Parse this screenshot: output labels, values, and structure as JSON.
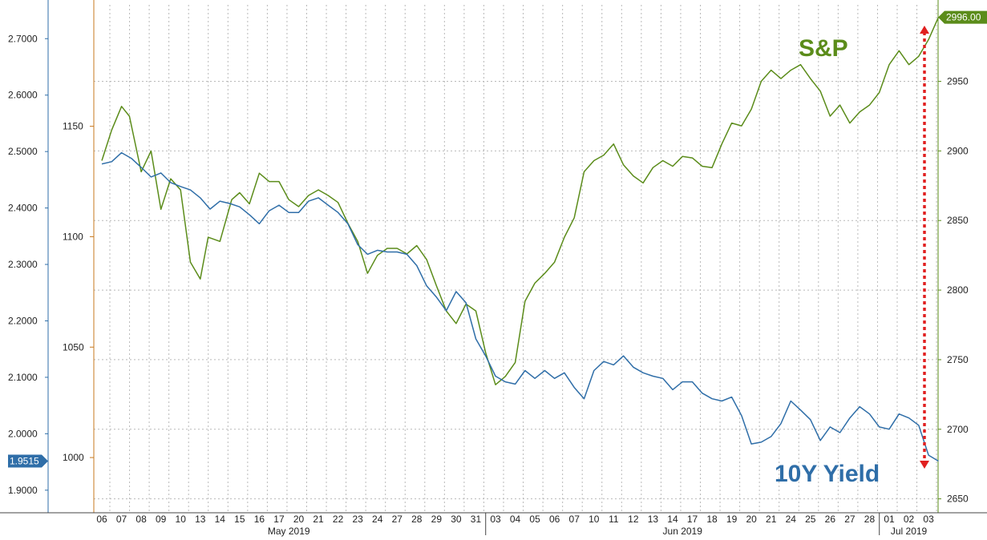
{
  "chart_data": {
    "type": "line",
    "title": "",
    "x_axis": {
      "day_ticks": [
        "06",
        "07",
        "08",
        "09",
        "10",
        "13",
        "14",
        "15",
        "16",
        "17",
        "20",
        "21",
        "22",
        "23",
        "24",
        "27",
        "28",
        "29",
        "30",
        "31",
        "03",
        "04",
        "05",
        "06",
        "07",
        "10",
        "11",
        "12",
        "13",
        "14",
        "17",
        "18",
        "19",
        "20",
        "21",
        "24",
        "25",
        "26",
        "27",
        "28",
        "01",
        "02",
        "03"
      ],
      "month_labels": [
        {
          "label": "May 2019",
          "from_tick": 0,
          "to_tick": 19
        },
        {
          "label": "Jun 2019",
          "from_tick": 20,
          "to_tick": 39
        },
        {
          "label": "Jul 2019",
          "from_tick": 40,
          "to_tick": 42
        }
      ],
      "month_separators_after_tick": [
        19,
        39
      ]
    },
    "y_axes": {
      "far_left": {
        "min": 1.86,
        "max": 2.76,
        "ticks": [
          "2.7000",
          "2.6000",
          "2.5000",
          "2.4000",
          "2.3000",
          "2.2000",
          "2.1000",
          "2.0000",
          "1.9000"
        ],
        "color": "#2f6ea8"
      },
      "inner_left": {
        "min": 975,
        "max": 1205,
        "ticks": [
          "1150",
          "1100",
          "1050",
          "1000"
        ],
        "color": "#c7781f"
      },
      "right": {
        "min": 2640,
        "max": 3005,
        "ticks": [
          "2950",
          "2900",
          "2850",
          "2800",
          "2750",
          "2700",
          "2650"
        ],
        "color": "#5b8c1a"
      }
    },
    "series": [
      {
        "name": "S&P",
        "color": "#5b8c1a",
        "axis": "right",
        "last_value": "2996.00",
        "points": [
          [
            0,
            2893
          ],
          [
            0.5,
            2915
          ],
          [
            1,
            2932
          ],
          [
            1.4,
            2925
          ],
          [
            2,
            2885
          ],
          [
            2.5,
            2900
          ],
          [
            3,
            2858
          ],
          [
            3.5,
            2880
          ],
          [
            4,
            2872
          ],
          [
            4.5,
            2820
          ],
          [
            5,
            2808
          ],
          [
            5.4,
            2838
          ],
          [
            6,
            2835
          ],
          [
            6.6,
            2865
          ],
          [
            7,
            2870
          ],
          [
            7.5,
            2862
          ],
          [
            8,
            2884
          ],
          [
            8.5,
            2878
          ],
          [
            9,
            2878
          ],
          [
            9.5,
            2865
          ],
          [
            10,
            2860
          ],
          [
            10.5,
            2868
          ],
          [
            11,
            2872
          ],
          [
            11.5,
            2868
          ],
          [
            12,
            2863
          ],
          [
            12.5,
            2848
          ],
          [
            13,
            2835
          ],
          [
            13.5,
            2812
          ],
          [
            14,
            2825
          ],
          [
            14.5,
            2830
          ],
          [
            15,
            2830
          ],
          [
            15.5,
            2826
          ],
          [
            16,
            2832
          ],
          [
            16.5,
            2822
          ],
          [
            17,
            2803
          ],
          [
            17.5,
            2785
          ],
          [
            18,
            2776
          ],
          [
            18.5,
            2790
          ],
          [
            19,
            2785
          ],
          [
            19.5,
            2755
          ],
          [
            20,
            2732
          ],
          [
            20.5,
            2738
          ],
          [
            21,
            2748
          ],
          [
            21.5,
            2792
          ],
          [
            22,
            2805
          ],
          [
            22.5,
            2812
          ],
          [
            23,
            2820
          ],
          [
            23.5,
            2838
          ],
          [
            24,
            2852
          ],
          [
            24.5,
            2885
          ],
          [
            25,
            2893
          ],
          [
            25.5,
            2897
          ],
          [
            26,
            2905
          ],
          [
            26.5,
            2890
          ],
          [
            27,
            2882
          ],
          [
            27.5,
            2877
          ],
          [
            28,
            2888
          ],
          [
            28.5,
            2893
          ],
          [
            29,
            2889
          ],
          [
            29.5,
            2896
          ],
          [
            30,
            2895
          ],
          [
            30.5,
            2889
          ],
          [
            31,
            2888
          ],
          [
            31.5,
            2905
          ],
          [
            32,
            2920
          ],
          [
            32.5,
            2918
          ],
          [
            33,
            2930
          ],
          [
            33.5,
            2950
          ],
          [
            34,
            2958
          ],
          [
            34.5,
            2952
          ],
          [
            35,
            2958
          ],
          [
            35.5,
            2962
          ],
          [
            36,
            2952
          ],
          [
            36.5,
            2943
          ],
          [
            37,
            2925
          ],
          [
            37.5,
            2933
          ],
          [
            38,
            2920
          ],
          [
            38.5,
            2928
          ],
          [
            39,
            2933
          ],
          [
            39.5,
            2942
          ],
          [
            40,
            2962
          ],
          [
            40.5,
            2972
          ],
          [
            41,
            2962
          ],
          [
            41.5,
            2968
          ],
          [
            42,
            2980
          ],
          [
            42.5,
            2996
          ]
        ]
      },
      {
        "name": "10Y Yield",
        "color": "#2f6ea8",
        "axis": "far_left",
        "last_value": "1.9515",
        "points": [
          [
            0,
            2.478
          ],
          [
            0.5,
            2.482
          ],
          [
            1,
            2.498
          ],
          [
            1.5,
            2.488
          ],
          [
            2,
            2.472
          ],
          [
            2.5,
            2.455
          ],
          [
            3,
            2.462
          ],
          [
            3.5,
            2.445
          ],
          [
            4,
            2.438
          ],
          [
            4.5,
            2.432
          ],
          [
            5,
            2.418
          ],
          [
            5.5,
            2.398
          ],
          [
            6,
            2.412
          ],
          [
            6.5,
            2.408
          ],
          [
            7,
            2.402
          ],
          [
            7.5,
            2.388
          ],
          [
            8,
            2.372
          ],
          [
            8.5,
            2.395
          ],
          [
            9,
            2.405
          ],
          [
            9.5,
            2.392
          ],
          [
            10,
            2.392
          ],
          [
            10.5,
            2.412
          ],
          [
            11,
            2.418
          ],
          [
            11.5,
            2.405
          ],
          [
            12,
            2.392
          ],
          [
            12.5,
            2.372
          ],
          [
            13,
            2.335
          ],
          [
            13.5,
            2.318
          ],
          [
            14,
            2.325
          ],
          [
            14.5,
            2.322
          ],
          [
            15,
            2.322
          ],
          [
            15.5,
            2.318
          ],
          [
            16,
            2.298
          ],
          [
            16.5,
            2.262
          ],
          [
            17,
            2.242
          ],
          [
            17.5,
            2.218
          ],
          [
            18,
            2.252
          ],
          [
            18.5,
            2.232
          ],
          [
            19,
            2.168
          ],
          [
            19.5,
            2.138
          ],
          [
            20,
            2.102
          ],
          [
            20.5,
            2.092
          ],
          [
            21,
            2.088
          ],
          [
            21.5,
            2.112
          ],
          [
            22,
            2.098
          ],
          [
            22.5,
            2.112
          ],
          [
            23,
            2.098
          ],
          [
            23.5,
            2.108
          ],
          [
            24,
            2.082
          ],
          [
            24.5,
            2.062
          ],
          [
            25,
            2.112
          ],
          [
            25.5,
            2.128
          ],
          [
            26,
            2.122
          ],
          [
            26.5,
            2.138
          ],
          [
            27,
            2.118
          ],
          [
            27.5,
            2.108
          ],
          [
            28,
            2.102
          ],
          [
            28.5,
            2.098
          ],
          [
            29,
            2.078
          ],
          [
            29.5,
            2.092
          ],
          [
            30,
            2.092
          ],
          [
            30.5,
            2.072
          ],
          [
            31,
            2.062
          ],
          [
            31.5,
            2.058
          ],
          [
            32,
            2.065
          ],
          [
            32.5,
            2.032
          ],
          [
            33,
            1.982
          ],
          [
            33.5,
            1.985
          ],
          [
            34,
            1.995
          ],
          [
            34.5,
            2.018
          ],
          [
            35,
            2.058
          ],
          [
            35.5,
            2.042
          ],
          [
            36,
            2.025
          ],
          [
            36.5,
            1.988
          ],
          [
            37,
            2.012
          ],
          [
            37.5,
            2.002
          ],
          [
            38,
            2.028
          ],
          [
            38.5,
            2.048
          ],
          [
            39,
            2.035
          ],
          [
            39.5,
            2.012
          ],
          [
            40,
            2.008
          ],
          [
            40.5,
            2.035
          ],
          [
            41,
            2.028
          ],
          [
            41.5,
            2.015
          ],
          [
            42,
            1.962
          ],
          [
            42.5,
            1.9515
          ]
        ]
      }
    ],
    "annotations": {
      "sp_label": "S&P",
      "yield_label": "10Y Yield",
      "arrow": "double-headed vertical red dotted arrow spanning from S&P level to 10Y Yield level on the final day"
    },
    "grid": true,
    "legend": "none"
  }
}
